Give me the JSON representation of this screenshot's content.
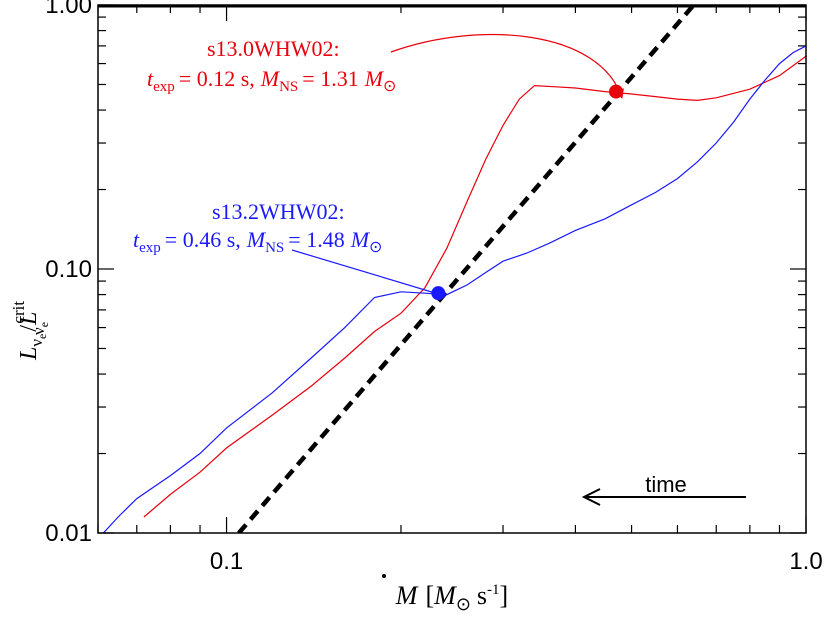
{
  "chart_data": {
    "type": "line",
    "x_scale": "log",
    "y_scale": "log",
    "xlim": [
      0.06,
      1.0
    ],
    "ylim": [
      0.01,
      1.0
    ],
    "x_ticks": [
      {
        "value": 0.1,
        "label": "0.1"
      },
      {
        "value": 1.0,
        "label": "1.0"
      }
    ],
    "y_ticks": [
      {
        "value": 0.01,
        "label": "0.01"
      },
      {
        "value": 0.1,
        "label": "0.10"
      },
      {
        "value": 1.0,
        "label": "1.00"
      }
    ],
    "xlabel": {
      "main": "M",
      "bracket_open": "[",
      "unit1": "M",
      "unit1_sub": "⊙",
      "unit2": "s",
      "unit2_sup": "-1",
      "bracket_close": "]"
    },
    "ylabel": {
      "main": "L",
      "sub": "ν",
      "subsub": "e",
      "slash": "/",
      "main2": "L",
      "sup2": "crit",
      "sub2": "ν",
      "subsub2": "e"
    },
    "reference_lines": [
      {
        "name": "unity",
        "y": 1.0,
        "color": "#000000",
        "style": "solid"
      },
      {
        "name": "critical-threshold",
        "x": [
          0.105,
          0.64
        ],
        "y": [
          0.01,
          1.0
        ],
        "color": "#000000",
        "style": "dashed"
      }
    ],
    "series": [
      {
        "name": "s13.0WHW02",
        "color": "#e8000b",
        "x": [
          0.072,
          0.08,
          0.09,
          0.1,
          0.12,
          0.14,
          0.16,
          0.18,
          0.2,
          0.22,
          0.24,
          0.26,
          0.28,
          0.3,
          0.32,
          0.34,
          0.37,
          0.4,
          0.45,
          0.5,
          0.55,
          0.6,
          0.65,
          0.7,
          0.8,
          0.9,
          1.0
        ],
        "y": [
          0.0115,
          0.014,
          0.017,
          0.021,
          0.028,
          0.036,
          0.046,
          0.058,
          0.068,
          0.085,
          0.12,
          0.18,
          0.26,
          0.35,
          0.44,
          0.495,
          0.49,
          0.485,
          0.47,
          0.46,
          0.45,
          0.44,
          0.435,
          0.445,
          0.48,
          0.54,
          0.64
        ]
      },
      {
        "name": "s13.2WHW02",
        "color": "#1a1aff",
        "x": [
          0.06,
          0.065,
          0.07,
          0.08,
          0.09,
          0.1,
          0.12,
          0.14,
          0.16,
          0.18,
          0.2,
          0.22,
          0.24,
          0.26,
          0.28,
          0.3,
          0.33,
          0.36,
          0.4,
          0.45,
          0.5,
          0.55,
          0.6,
          0.65,
          0.7,
          0.75,
          0.8,
          0.85,
          0.9,
          0.95,
          1.0
        ],
        "y": [
          0.0095,
          0.0115,
          0.0135,
          0.0165,
          0.02,
          0.025,
          0.034,
          0.046,
          0.06,
          0.078,
          0.082,
          0.081,
          0.08,
          0.087,
          0.097,
          0.107,
          0.115,
          0.125,
          0.14,
          0.155,
          0.175,
          0.195,
          0.22,
          0.255,
          0.3,
          0.36,
          0.44,
          0.52,
          0.6,
          0.66,
          0.7
        ]
      }
    ],
    "markers": [
      {
        "series": "s13.0WHW02",
        "x": 0.47,
        "y": 0.47,
        "color": "#e8000b"
      },
      {
        "series": "s13.2WHW02",
        "x": 0.232,
        "y": 0.081,
        "color": "#1a1aff"
      }
    ],
    "annotations": [
      {
        "series": "s13.0WHW02",
        "color": "#e8000b",
        "model": "s13.0WHW02:",
        "t_sym": "t",
        "t_sub": "exp",
        "t_value": "= 0.12 s,",
        "m_sym": "M",
        "m_sub": "NS",
        "m_value": "= 1.31",
        "m_unit": "M",
        "m_unit_sub": "⊙"
      },
      {
        "series": "s13.2WHW02",
        "color": "#1a1aff",
        "model": "s13.2WHW02:",
        "t_sym": "t",
        "t_sub": "exp",
        "t_value": "= 0.46 s,",
        "m_sym": "M",
        "m_sub": "NS",
        "m_value": "= 1.48",
        "m_unit": "M",
        "m_unit_sub": "⊙"
      }
    ],
    "time_arrow": {
      "label": "time",
      "direction": "left"
    }
  }
}
